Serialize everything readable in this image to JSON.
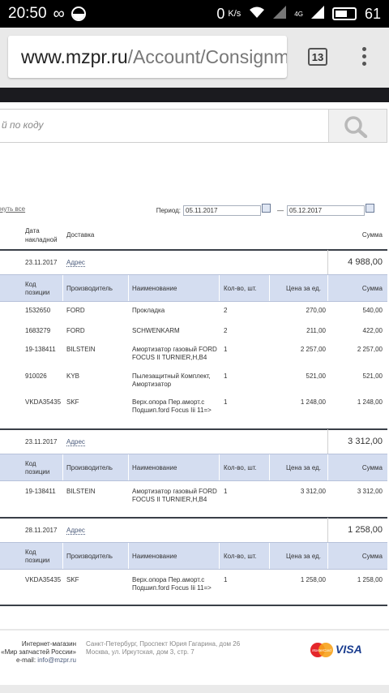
{
  "status_bar": {
    "time": "20:50",
    "infinity": "∞",
    "data_speed": "0",
    "data_unit": "K/s",
    "network": "4G",
    "battery": "61"
  },
  "browser": {
    "url_host": "www.mzpr.ru",
    "url_path": "/Account/Consignme",
    "tab_count": "13"
  },
  "search": {
    "placeholder": "й по коду"
  },
  "filter": {
    "expand_link": "нуть все",
    "period_label": "Период:",
    "date_from": "05.11.2017",
    "date_to": "05.12.2017",
    "dash": "—"
  },
  "table": {
    "headers": {
      "date_line1": "Дата",
      "date_line2": "накладной",
      "delivery": "Доставка",
      "sum": "Сумма"
    },
    "item_headers": {
      "code_line1": "Код",
      "code_line2": "позиции",
      "maker": "Производитель",
      "name": "Наименование",
      "qty": "Кол-во, шт.",
      "price": "Цена за ед.",
      "sum": "Сумма"
    },
    "consignments": [
      {
        "date": "23.11.2017",
        "delivery": "Адрес",
        "total": "4 988,00",
        "items": [
          {
            "code": "1532650",
            "maker": "FORD",
            "name": "Прокладка",
            "qty": "2",
            "price": "270,00",
            "sum": "540,00"
          },
          {
            "code": "1683279",
            "maker": "FORD",
            "name": "SCHWENKARM",
            "qty": "2",
            "price": "211,00",
            "sum": "422,00"
          },
          {
            "code": "19-138411",
            "maker": "BILSTEIN",
            "name": "Амортизатор газовый FORD FOCUS II TURNIER,H,B4",
            "qty": "1",
            "price": "2 257,00",
            "sum": "2 257,00"
          },
          {
            "code": "910026",
            "maker": "KYB",
            "name": "Пылезащитный Комплект, Амортизатор",
            "qty": "1",
            "price": "521,00",
            "sum": "521,00"
          },
          {
            "code": "VKDA35435",
            "maker": "SKF",
            "name": "Верх.опора Пер.аморт.с Подшип.ford Focus Iii 11=>",
            "qty": "1",
            "price": "1 248,00",
            "sum": "1 248,00"
          }
        ]
      },
      {
        "date": "23.11.2017",
        "delivery": "Адрес",
        "total": "3 312,00",
        "items": [
          {
            "code": "19-138411",
            "maker": "BILSTEIN",
            "name": "Амортизатор газовый FORD FOCUS II TURNIER,H,B4",
            "qty": "1",
            "price": "3 312,00",
            "sum": "3 312,00"
          }
        ]
      },
      {
        "date": "28.11.2017",
        "delivery": "Адрес",
        "total": "1 258,00",
        "items": [
          {
            "code": "VKDA35435",
            "maker": "SKF",
            "name": "Верх.опора Пер.аморт.с Подшип.ford Focus Iii 11=>",
            "qty": "1",
            "price": "1 258,00",
            "sum": "1 258,00"
          }
        ]
      }
    ]
  },
  "footer": {
    "shop_line1": "Интернет-магазин",
    "shop_line2": "«Мир запчастей России»",
    "email_label": "e-mail:",
    "email": "info@mzpr.ru",
    "address_line1": "Санкт-Петербург, Проспект Юрия Гагарина, дом 26",
    "address_line2": "Москва, ул. Иркутская, дом 3, стр. 7",
    "visa": "VISA",
    "mastercard": "MasterCard"
  },
  "colors": {
    "accent_blue": "#d4ddf0",
    "dark_rule": "#3a3f48",
    "link": "#4a5a7a"
  }
}
